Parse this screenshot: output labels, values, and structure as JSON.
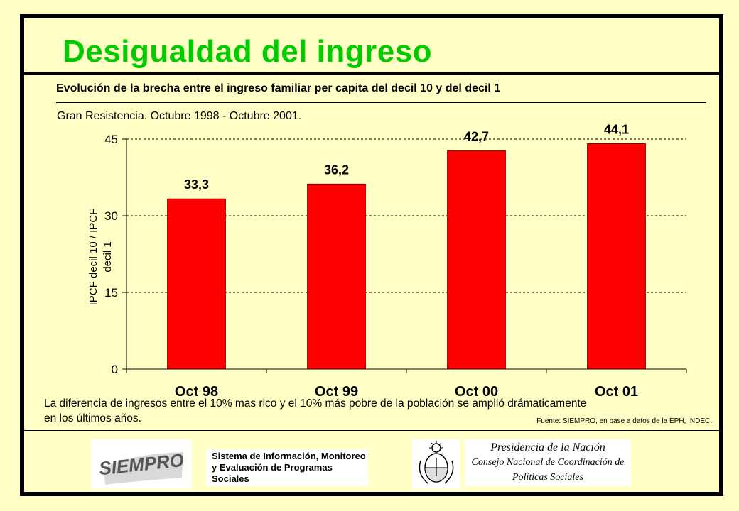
{
  "header": {
    "title": "Desigualdad del ingreso",
    "subtitle": "Evolución de la brecha entre el ingreso familiar per capita del decil 10 y del decil 1",
    "region": "Gran Resistencia. Octubre 1998 - Octubre 2001."
  },
  "chart_data": {
    "type": "bar",
    "categories": [
      "Oct 98",
      "Oct 99",
      "Oct 00",
      "Oct 01"
    ],
    "values": [
      33.3,
      36.2,
      42.7,
      44.1
    ],
    "value_labels": [
      "33,3",
      "36,2",
      "42,7",
      "44,1"
    ],
    "ylabel": "IPCF decil 10 / IPCF decil 1",
    "ylabel_lines": [
      "IPCF decil 10 / IPCF",
      "decil 1"
    ],
    "ylim": [
      0,
      45
    ],
    "yticks": [
      0,
      15,
      30,
      45
    ],
    "grid": true,
    "colors": {
      "bar": "#ff0000",
      "bar_edge": "#800000",
      "gridline": "#000000"
    }
  },
  "footer": {
    "note_line1": "La diferencia de ingresos entre el 10% mas rico y el 10% más pobre de la población se amplió drámaticamente",
    "note_line2": "en los últimos años.",
    "source": "Fuente: SIEMPRO, en base a datos de la EPH, INDEC."
  },
  "logos": {
    "siempro": "SIEMPRO",
    "sistema_line1": "Sistema de Información, Monitoreo",
    "sistema_line2": "y Evaluación de Programas Sociales",
    "presidencia_line1": "Presidencia de la Nación",
    "presidencia_line2": "Consejo Nacional de Coordinación de",
    "presidencia_line3": "Políticas Sociales",
    "crest_icon": "argentina-coat-of-arms-icon"
  },
  "colors": {
    "background": "#ffffc6",
    "title": "#00cc00"
  }
}
